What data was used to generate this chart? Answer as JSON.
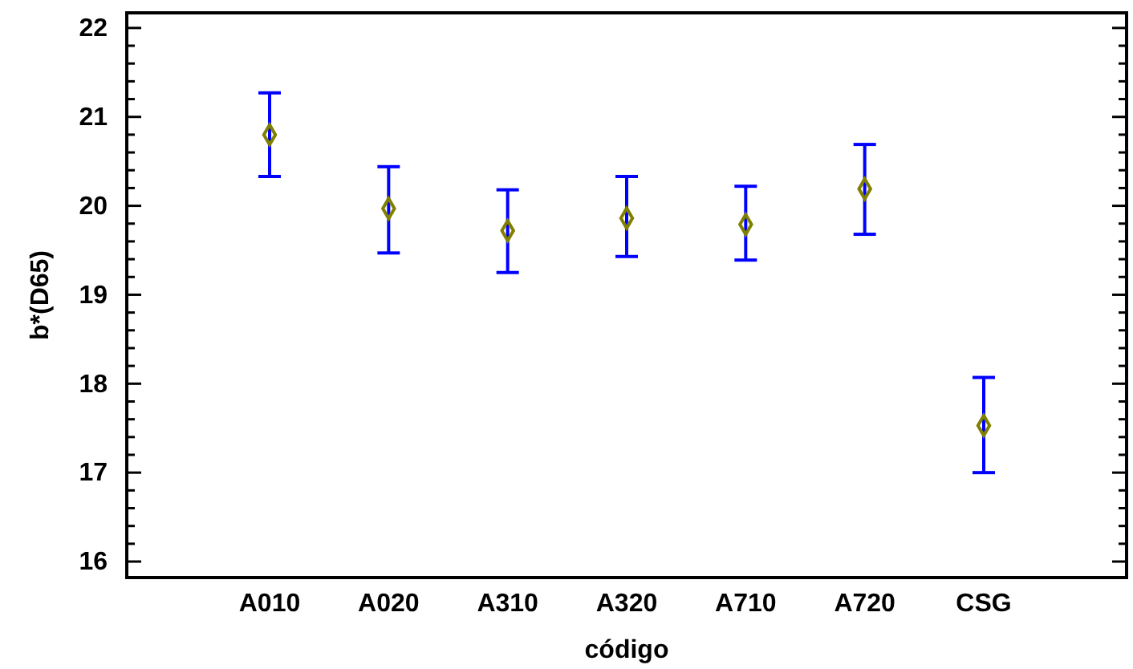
{
  "chart_data": {
    "type": "scatter",
    "xlabel": "código",
    "ylabel": "b*(D65)",
    "categories": [
      "A010",
      "A020",
      "A310",
      "A320",
      "A710",
      "A720",
      "CSG"
    ],
    "series": [
      {
        "color": "#808000",
        "values": [
          20.8,
          19.97,
          19.72,
          19.86,
          19.79,
          20.19,
          17.53
        ],
        "errors": [
          [
            20.33,
            21.27
          ],
          [
            19.47,
            20.44
          ],
          [
            19.25,
            20.18
          ],
          [
            19.43,
            20.33
          ],
          [
            19.39,
            20.22
          ],
          [
            19.68,
            20.69
          ],
          [
            17.0,
            18.07
          ]
        ]
      }
    ],
    "marker": "diamond",
    "grid": false,
    "ylim": [
      15.82,
      22.17
    ],
    "yticks": [
      16,
      {
        "value": 16.2,
        "label": null
      },
      {
        "value": 16.4,
        "label": null
      },
      {
        "value": 16.6,
        "label": null
      },
      {
        "value": 16.8,
        "label": null
      },
      17,
      {
        "value": 17.2,
        "label": null
      },
      {
        "value": 17.4,
        "label": null
      },
      {
        "value": 17.6,
        "label": null
      },
      {
        "value": 17.8,
        "label": null
      },
      18,
      {
        "value": 18.2,
        "label": null
      },
      {
        "value": 18.4,
        "label": null
      },
      {
        "value": 18.6,
        "label": null
      },
      {
        "value": 18.8,
        "label": null
      },
      19,
      {
        "value": 19.2,
        "label": null
      },
      {
        "value": 19.4,
        "label": null
      },
      {
        "value": 19.6,
        "label": null
      },
      {
        "value": 19.8,
        "label": null
      },
      20,
      {
        "value": 20.2,
        "label": null
      },
      {
        "value": 20.4,
        "label": null
      },
      {
        "value": 20.6,
        "label": null
      },
      {
        "value": 20.8,
        "label": null
      },
      21,
      {
        "value": 21.2,
        "label": null
      },
      {
        "value": 21.4,
        "label": null
      },
      {
        "value": 21.6,
        "label": null
      },
      {
        "value": 21.8,
        "label": null
      },
      22
    ]
  }
}
